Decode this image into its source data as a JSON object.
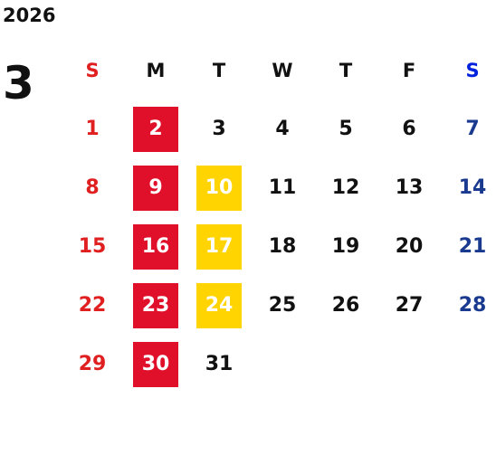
{
  "calendar": {
    "year": "2026",
    "month": "3",
    "weekdays": [
      "S",
      "M",
      "T",
      "W",
      "T",
      "F",
      "S"
    ],
    "weeks": [
      [
        "1",
        "2",
        "3",
        "4",
        "5",
        "6",
        "7"
      ],
      [
        "8",
        "9",
        "10",
        "11",
        "12",
        "13",
        "14"
      ],
      [
        "15",
        "16",
        "17",
        "18",
        "19",
        "20",
        "21"
      ],
      [
        "22",
        "23",
        "24",
        "25",
        "26",
        "27",
        "28"
      ],
      [
        "29",
        "30",
        "31",
        "",
        "",
        "",
        ""
      ]
    ],
    "highlights": {
      "red": [
        "2",
        "9",
        "16",
        "23",
        "30"
      ],
      "yellow": [
        "10",
        "17",
        "24"
      ]
    },
    "colors": {
      "sunday": "#e02020",
      "saturday": "#1a3a8f",
      "red_highlight": "#e0102a",
      "yellow_highlight": "#ffd400"
    }
  }
}
